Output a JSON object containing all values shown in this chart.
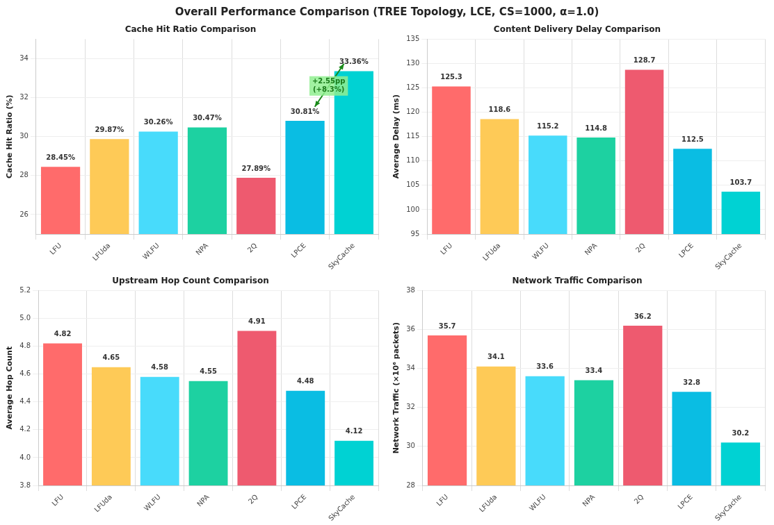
{
  "chart_data": [
    {
      "type": "other",
      "title": "Overall Performance Comparison (TREE Topology, LCE, CS=1000, α=1.0)"
    },
    {
      "type": "bar",
      "title": "Cache Hit Ratio Comparison",
      "ylabel": "Cache Hit Ratio (%)",
      "categories": [
        "LFU",
        "LFUda",
        "WLFU",
        "NPA",
        "2Q",
        "LPCE",
        "SkyCache"
      ],
      "values": [
        28.45,
        29.87,
        30.26,
        30.47,
        27.89,
        30.81,
        33.36
      ],
      "colors": [
        "#ff6b6b",
        "#feca57",
        "#48dbfb",
        "#1dd1a1",
        "#ee5a6f",
        "#0abde3",
        "#00d2d3"
      ],
      "ylim": [
        25,
        35
      ],
      "yticks": [
        26,
        28,
        30,
        32,
        34
      ],
      "grid": true,
      "value_labels": [
        "28.45%",
        "29.87%",
        "30.26%",
        "30.47%",
        "27.89%",
        "30.81%",
        "33.36%"
      ],
      "annotations": [
        "+2.55pp\n(+8.3%)"
      ]
    },
    {
      "type": "bar",
      "title": "Content Delivery Delay Comparison",
      "ylabel": "Average Delay (ms)",
      "categories": [
        "LFU",
        "LFUda",
        "WLFU",
        "NPA",
        "2Q",
        "LPCE",
        "SkyCache"
      ],
      "values": [
        125.3,
        118.6,
        115.2,
        114.8,
        128.7,
        112.5,
        103.7
      ],
      "colors": [
        "#ff6b6b",
        "#feca57",
        "#48dbfb",
        "#1dd1a1",
        "#ee5a6f",
        "#0abde3",
        "#00d2d3"
      ],
      "ylim": [
        95,
        135
      ],
      "yticks": [
        95,
        100,
        105,
        110,
        115,
        120,
        125,
        130,
        135
      ],
      "grid": true,
      "data_labels": true
    },
    {
      "type": "bar",
      "title": "Upstream Hop Count Comparison",
      "ylabel": "Average Hop Count",
      "categories": [
        "LFU",
        "LFUda",
        "WLFU",
        "NPA",
        "2Q",
        "LPCE",
        "SkyCache"
      ],
      "values": [
        4.82,
        4.65,
        4.58,
        4.55,
        4.91,
        4.48,
        4.12
      ],
      "colors": [
        "#ff6b6b",
        "#feca57",
        "#48dbfb",
        "#1dd1a1",
        "#ee5a6f",
        "#0abde3",
        "#00d2d3"
      ],
      "ylim": [
        3.8,
        5.2
      ],
      "yticks": [
        3.8,
        {
          "value": 4,
          "label": "4.0"
        },
        4.2,
        4.4,
        4.6,
        4.8,
        {
          "value": 5,
          "label": "5.0"
        },
        5.2
      ],
      "grid": true,
      "data_labels": true
    },
    {
      "type": "bar",
      "title": "Network Traffic Comparison",
      "ylabel": "Network Traffic (×10⁶ packets)",
      "categories": [
        "LFU",
        "LFUda",
        "WLFU",
        "NPA",
        "2Q",
        "LPCE",
        "SkyCache"
      ],
      "values": [
        35.7,
        34.1,
        33.6,
        33.4,
        36.2,
        32.8,
        30.2
      ],
      "colors": [
        "#ff6b6b",
        "#feca57",
        "#48dbfb",
        "#1dd1a1",
        "#ee5a6f",
        "#0abde3",
        "#00d2d3"
      ],
      "ylim": [
        28,
        38
      ],
      "yticks": [
        28,
        30,
        32,
        34,
        36,
        38
      ],
      "grid": true,
      "data_labels": true
    }
  ]
}
